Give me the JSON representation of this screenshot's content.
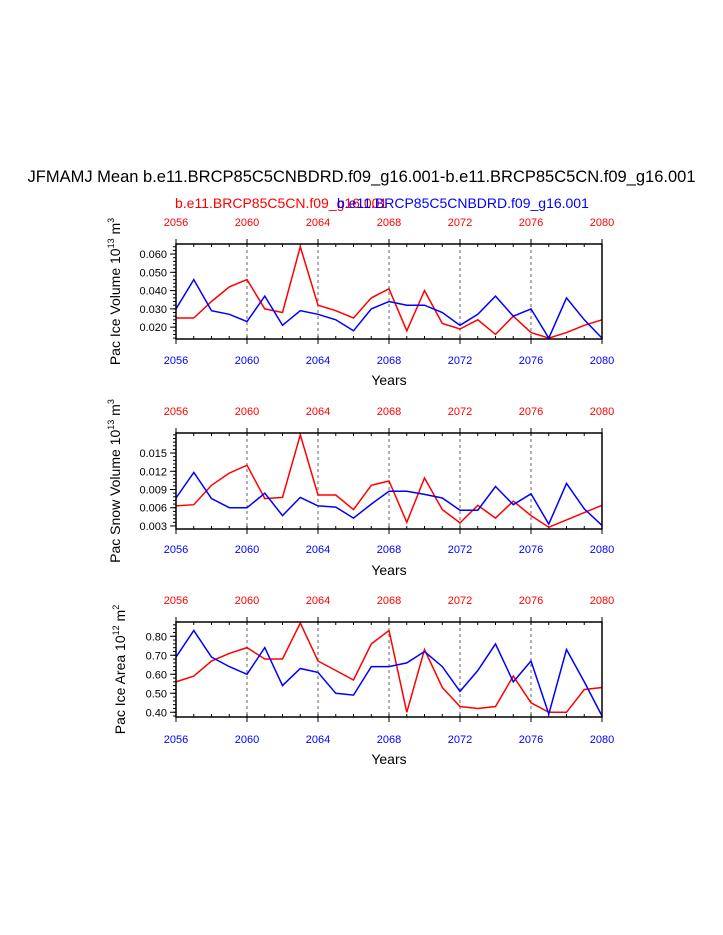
{
  "title": "JFMAMJ Mean b.e11.BRCP85C5CNBDRD.f09_g16.001-b.e11.BRCP85C5CN.f09_g16.001",
  "legend": {
    "red": "b.e11.BRCP85C5CN.f09_g16.001",
    "blue": "b.e11.BRCP85C5CNBDRD.f09_g16.001"
  },
  "colors": {
    "red": "#ff0000",
    "blue": "#0000ff",
    "axis": "#000000",
    "grid": "#555555"
  },
  "chart_data": [
    {
      "type": "line",
      "ylabel": "Pac Ice Volume 10^13 m^3",
      "ylabel_main": "Pac Ice Volume 10",
      "ylabel_exp": "13",
      "ylabel_unit": "m",
      "ylabel_unit_exp": "3",
      "xlabel": "Years",
      "x": [
        2056,
        2057,
        2058,
        2059,
        2060,
        2061,
        2062,
        2063,
        2064,
        2065,
        2066,
        2067,
        2068,
        2069,
        2070,
        2071,
        2072,
        2073,
        2074,
        2075,
        2076,
        2077,
        2078,
        2079,
        2080
      ],
      "xticks": [
        "2056",
        "2060",
        "2064",
        "2068",
        "2072",
        "2076",
        "2080"
      ],
      "xlim": [
        2056,
        2080
      ],
      "ylim": [
        0.0135,
        0.0655
      ],
      "yticks": [
        "0.020",
        "0.030",
        "0.040",
        "0.050",
        "0.060"
      ],
      "ytick_values": [
        0.02,
        0.03,
        0.04,
        0.05,
        0.06
      ],
      "series": [
        {
          "color": "red",
          "values": [
            0.025,
            0.025,
            0.034,
            0.042,
            0.046,
            0.03,
            0.028,
            0.064,
            0.032,
            0.029,
            0.025,
            0.036,
            0.041,
            0.018,
            0.04,
            0.022,
            0.019,
            0.024,
            0.016,
            0.026,
            0.017,
            0.014,
            0.017,
            0.021,
            0.024
          ]
        },
        {
          "color": "blue",
          "values": [
            0.03,
            0.046,
            0.029,
            0.027,
            0.023,
            0.037,
            0.021,
            0.029,
            0.027,
            0.024,
            0.018,
            0.03,
            0.034,
            0.032,
            0.032,
            0.028,
            0.021,
            0.027,
            0.037,
            0.026,
            0.03,
            0.014,
            0.036,
            0.024,
            0.014
          ]
        }
      ]
    },
    {
      "type": "line",
      "ylabel": "Pac Snow Volume 10^13 m^3",
      "ylabel_main": "Pac Snow Volume 10",
      "ylabel_exp": "13",
      "ylabel_unit": "m",
      "ylabel_unit_exp": "3",
      "xlabel": "Years",
      "x": [
        2056,
        2057,
        2058,
        2059,
        2060,
        2061,
        2062,
        2063,
        2064,
        2065,
        2066,
        2067,
        2068,
        2069,
        2070,
        2071,
        2072,
        2073,
        2074,
        2075,
        2076,
        2077,
        2078,
        2079,
        2080
      ],
      "xticks": [
        "2056",
        "2060",
        "2064",
        "2068",
        "2072",
        "2076",
        "2080"
      ],
      "xlim": [
        2056,
        2080
      ],
      "ylim": [
        0.0025,
        0.0183
      ],
      "yticks": [
        "0.003",
        "0.006",
        "0.009",
        "0.012",
        "0.015"
      ],
      "ytick_values": [
        0.003,
        0.006,
        0.009,
        0.012,
        0.015
      ],
      "series": [
        {
          "color": "red",
          "values": [
            0.0063,
            0.0065,
            0.0097,
            0.0117,
            0.013,
            0.0075,
            0.0077,
            0.018,
            0.0081,
            0.0081,
            0.0057,
            0.0097,
            0.0104,
            0.0036,
            0.0109,
            0.0057,
            0.0035,
            0.0064,
            0.0043,
            0.0071,
            0.0047,
            0.0028,
            0.004,
            0.0052,
            0.0064
          ]
        },
        {
          "color": "blue",
          "values": [
            0.0076,
            0.0118,
            0.0075,
            0.006,
            0.006,
            0.0084,
            0.0047,
            0.0077,
            0.0063,
            0.0061,
            0.0043,
            0.0066,
            0.0087,
            0.0087,
            0.0082,
            0.0076,
            0.0056,
            0.0056,
            0.0095,
            0.0065,
            0.0083,
            0.0033,
            0.01,
            0.0058,
            0.0031
          ]
        }
      ]
    },
    {
      "type": "line",
      "ylabel": "Pac Ice Area 10^12 m^2",
      "ylabel_main": "Pac Ice Area 10",
      "ylabel_exp": "12",
      "ylabel_unit": "m",
      "ylabel_unit_exp": "2",
      "xlabel": "Years",
      "x": [
        2056,
        2057,
        2058,
        2059,
        2060,
        2061,
        2062,
        2063,
        2064,
        2065,
        2066,
        2067,
        2068,
        2069,
        2070,
        2071,
        2072,
        2073,
        2074,
        2075,
        2076,
        2077,
        2078,
        2079,
        2080
      ],
      "xticks": [
        "2056",
        "2060",
        "2064",
        "2068",
        "2072",
        "2076",
        "2080"
      ],
      "xlim": [
        2056,
        2080
      ],
      "ylim": [
        0.375,
        0.875
      ],
      "yticks": [
        "0.40",
        "0.50",
        "0.60",
        "0.70",
        "0.80"
      ],
      "ytick_values": [
        0.4,
        0.5,
        0.6,
        0.7,
        0.8
      ],
      "series": [
        {
          "color": "red",
          "values": [
            0.56,
            0.59,
            0.67,
            0.71,
            0.74,
            0.68,
            0.68,
            0.87,
            0.67,
            0.62,
            0.57,
            0.76,
            0.83,
            0.4,
            0.73,
            0.53,
            0.43,
            0.42,
            0.43,
            0.59,
            0.45,
            0.4,
            0.4,
            0.52,
            0.53
          ]
        },
        {
          "color": "blue",
          "values": [
            0.69,
            0.83,
            0.69,
            0.64,
            0.6,
            0.74,
            0.54,
            0.63,
            0.61,
            0.5,
            0.49,
            0.64,
            0.64,
            0.66,
            0.72,
            0.64,
            0.51,
            0.62,
            0.76,
            0.56,
            0.67,
            0.39,
            0.73,
            0.56,
            0.38
          ]
        }
      ]
    }
  ]
}
